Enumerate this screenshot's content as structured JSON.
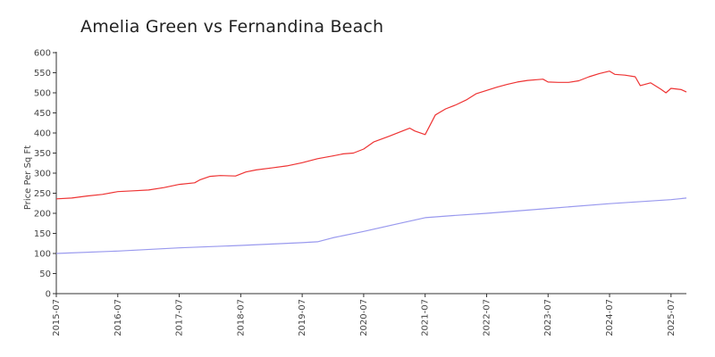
{
  "chart_data": {
    "type": "line",
    "title": "Amelia Green vs Fernandina Beach",
    "xlabel": "",
    "ylabel": "Price Per Sq Ft",
    "ylim": [
      0,
      600
    ],
    "yticks": [
      0,
      50,
      100,
      150,
      200,
      250,
      300,
      350,
      400,
      450,
      500,
      550,
      600
    ],
    "xticks": [
      "2015-07",
      "2016-07",
      "2017-07",
      "2018-07",
      "2019-07",
      "2020-07",
      "2021-07",
      "2022-07",
      "2023-07",
      "2024-07",
      "2025-07"
    ],
    "x_start": "2015-07",
    "x_end": "2025-10",
    "grid": false,
    "legend": "none",
    "series": [
      {
        "color": "#ee3333",
        "points": [
          [
            "2015-07",
            236
          ],
          [
            "2015-10",
            238
          ],
          [
            "2016-01",
            243
          ],
          [
            "2016-04",
            247
          ],
          [
            "2016-07",
            254
          ],
          [
            "2016-10",
            256
          ],
          [
            "2017-01",
            258
          ],
          [
            "2017-04",
            264
          ],
          [
            "2017-07",
            272
          ],
          [
            "2017-10",
            276
          ],
          [
            "2017-11",
            283
          ],
          [
            "2018-01",
            292
          ],
          [
            "2018-03",
            294
          ],
          [
            "2018-06",
            293
          ],
          [
            "2018-08",
            303
          ],
          [
            "2018-10",
            308
          ],
          [
            "2019-01",
            313
          ],
          [
            "2019-04",
            318
          ],
          [
            "2019-07",
            326
          ],
          [
            "2019-10",
            336
          ],
          [
            "2020-01",
            343
          ],
          [
            "2020-03",
            348
          ],
          [
            "2020-05",
            350
          ],
          [
            "2020-07",
            360
          ],
          [
            "2020-09",
            378
          ],
          [
            "2020-12",
            392
          ],
          [
            "2021-02",
            402
          ],
          [
            "2021-04",
            412
          ],
          [
            "2021-05",
            405
          ],
          [
            "2021-07",
            396
          ],
          [
            "2021-09",
            445
          ],
          [
            "2021-11",
            460
          ],
          [
            "2022-01",
            470
          ],
          [
            "2022-03",
            482
          ],
          [
            "2022-05",
            498
          ],
          [
            "2022-07",
            506
          ],
          [
            "2022-09",
            514
          ],
          [
            "2022-11",
            521
          ],
          [
            "2023-01",
            527
          ],
          [
            "2023-03",
            531
          ],
          [
            "2023-05",
            533
          ],
          [
            "2023-06",
            534
          ],
          [
            "2023-07",
            527
          ],
          [
            "2023-09",
            526
          ],
          [
            "2023-11",
            526
          ],
          [
            "2024-01",
            530
          ],
          [
            "2024-03",
            540
          ],
          [
            "2024-05",
            548
          ],
          [
            "2024-07",
            554
          ],
          [
            "2024-08",
            546
          ],
          [
            "2024-10",
            544
          ],
          [
            "2024-12",
            540
          ],
          [
            "2025-01",
            518
          ],
          [
            "2025-03",
            525
          ],
          [
            "2025-05",
            509
          ],
          [
            "2025-06",
            500
          ],
          [
            "2025-07",
            511
          ],
          [
            "2025-09",
            508
          ],
          [
            "2025-10",
            502
          ]
        ]
      },
      {
        "color": "#9999ee",
        "points": [
          [
            "2015-07",
            100
          ],
          [
            "2016-07",
            106
          ],
          [
            "2017-07",
            114
          ],
          [
            "2018-07",
            120
          ],
          [
            "2019-07",
            127
          ],
          [
            "2019-10",
            129
          ],
          [
            "2020-01",
            139
          ],
          [
            "2020-07",
            155
          ],
          [
            "2021-01",
            172
          ],
          [
            "2021-07",
            189
          ],
          [
            "2022-01",
            195
          ],
          [
            "2022-07",
            200
          ],
          [
            "2023-07",
            212
          ],
          [
            "2024-07",
            224
          ],
          [
            "2025-07",
            234
          ],
          [
            "2025-10",
            238
          ]
        ]
      }
    ]
  }
}
